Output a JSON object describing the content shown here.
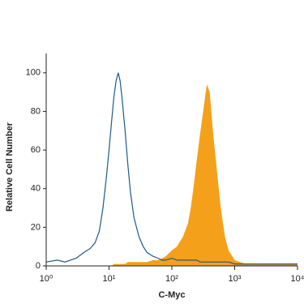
{
  "chart_data": {
    "type": "histogram-overlay",
    "xlabel": "C-Myc",
    "ylabel": "Relative Cell Number",
    "xscale": "log",
    "xlim": [
      1,
      10000
    ],
    "ylim": [
      0,
      110
    ],
    "xticks": [
      {
        "value": 1,
        "label": "10⁰"
      },
      {
        "value": 10,
        "label": "10¹"
      },
      {
        "value": 100,
        "label": "10²"
      },
      {
        "value": 1000,
        "label": "10³"
      },
      {
        "value": 10000,
        "label": "10⁴"
      }
    ],
    "yticks": [
      0,
      20,
      40,
      60,
      80,
      100
    ],
    "x": [
      1,
      1.5,
      2,
      3,
      4,
      5,
      6,
      7,
      8,
      9,
      10,
      11,
      12,
      13,
      14,
      15,
      16,
      18,
      20,
      22,
      25,
      30,
      35,
      40,
      50,
      60,
      70,
      80,
      100,
      120,
      150,
      180,
      200,
      220,
      250,
      280,
      300,
      330,
      360,
      400,
      450,
      500,
      600,
      700,
      800,
      1000,
      1500,
      2000,
      3000,
      5000,
      7000,
      10000
    ],
    "series": [
      {
        "color": "#1f5a8a",
        "fill": false,
        "values": [
          2,
          3,
          2,
          4,
          7,
          9,
          12,
          18,
          30,
          45,
          60,
          75,
          88,
          96,
          100,
          96,
          88,
          70,
          52,
          38,
          25,
          15,
          10,
          7,
          5,
          4,
          3,
          3,
          4,
          3,
          3,
          3,
          3,
          3,
          3,
          2,
          2,
          2,
          2,
          2,
          2,
          2,
          2,
          2,
          2,
          1,
          1,
          1,
          1,
          1,
          1,
          1
        ]
      },
      {
        "color": "#f5a01a",
        "fill": true,
        "values": [
          0,
          0,
          0,
          0,
          0,
          0,
          0,
          0,
          0,
          0,
          0,
          0,
          1,
          1,
          1,
          1,
          1,
          1,
          2,
          2,
          2,
          2,
          2,
          2,
          3,
          3,
          4,
          5,
          8,
          10,
          15,
          22,
          30,
          40,
          55,
          68,
          75,
          85,
          94,
          90,
          70,
          55,
          30,
          15,
          8,
          3,
          1,
          1,
          1,
          1,
          1,
          1
        ]
      }
    ]
  }
}
